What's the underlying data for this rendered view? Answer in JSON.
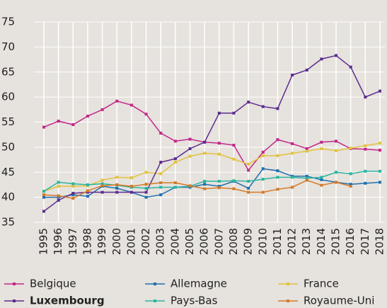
{
  "chart_data": {
    "type": "line",
    "x": [
      1995,
      1996,
      1997,
      1998,
      1999,
      2000,
      2001,
      2002,
      2003,
      2004,
      2005,
      2006,
      2007,
      2008,
      2009,
      2010,
      2011,
      2012,
      2013,
      2014,
      2015,
      2016,
      2017,
      2018
    ],
    "series": [
      {
        "name": "Belgique",
        "color": "#c2268a",
        "values": [
          54,
          55.2,
          54.5,
          56.2,
          57.5,
          59.2,
          58.4,
          56.6,
          52.8,
          51.2,
          51.6,
          51.0,
          50.8,
          50.4,
          45.4,
          49.0,
          51.5,
          50.7,
          49.7,
          51.0,
          51.2,
          49.7,
          49.6,
          49.4
        ]
      },
      {
        "name": "Allemagne",
        "color": "#1f6fae",
        "values": [
          40.0,
          40.0,
          40.5,
          40.2,
          42.2,
          41.8,
          41.0,
          40.0,
          40.5,
          42.0,
          42.0,
          42.6,
          42.2,
          43.2,
          41.8,
          45.7,
          45.3,
          44.2,
          44.2,
          43.5,
          43.0,
          42.6,
          42.8,
          43.0
        ]
      },
      {
        "name": "France",
        "color": "#e2c23e",
        "values": [
          41.2,
          42.2,
          42.2,
          42.3,
          43.4,
          44.0,
          43.9,
          45.0,
          44.7,
          47.0,
          48.2,
          48.8,
          48.6,
          47.6,
          46.6,
          48.3,
          48.3,
          48.8,
          49.2,
          49.7,
          49.3,
          49.8,
          50.3,
          50.8
        ]
      },
      {
        "name": "Luxembourg",
        "color": "#5b2d8e",
        "values": [
          37.2,
          39.4,
          40.8,
          41.0,
          41.0,
          41.0,
          41.0,
          41.0,
          47.0,
          47.7,
          49.7,
          51.0,
          56.8,
          56.8,
          59.0,
          58.1,
          57.7,
          64.4,
          65.4,
          67.6,
          68.3,
          66.0,
          60.0,
          61.2
        ]
      },
      {
        "name": "Pays-Bas",
        "color": "#2ab5a0",
        "values": [
          41.2,
          43.0,
          42.7,
          42.5,
          42.7,
          42.4,
          42.0,
          41.8,
          42.0,
          42.0,
          42.2,
          43.2,
          43.2,
          43.3,
          43.2,
          43.6,
          44.0,
          44.0,
          43.8,
          44.0,
          45.0,
          44.7,
          45.2,
          45.2
        ]
      },
      {
        "name": "Royaume-Uni",
        "color": "#d37a2a",
        "values": [
          40.5,
          40.3,
          39.8,
          41.3,
          42.3,
          42.5,
          42.2,
          42.6,
          42.9,
          42.9,
          42.3,
          41.7,
          41.9,
          41.7,
          41.0,
          41.0,
          41.6,
          42.0,
          43.4,
          42.4,
          43.0,
          42.2,
          null,
          null
        ]
      }
    ],
    "ylim": [
      35,
      75
    ],
    "yticks": [
      35,
      40,
      45,
      50,
      55,
      60,
      65,
      70,
      75
    ],
    "grid": true
  }
}
